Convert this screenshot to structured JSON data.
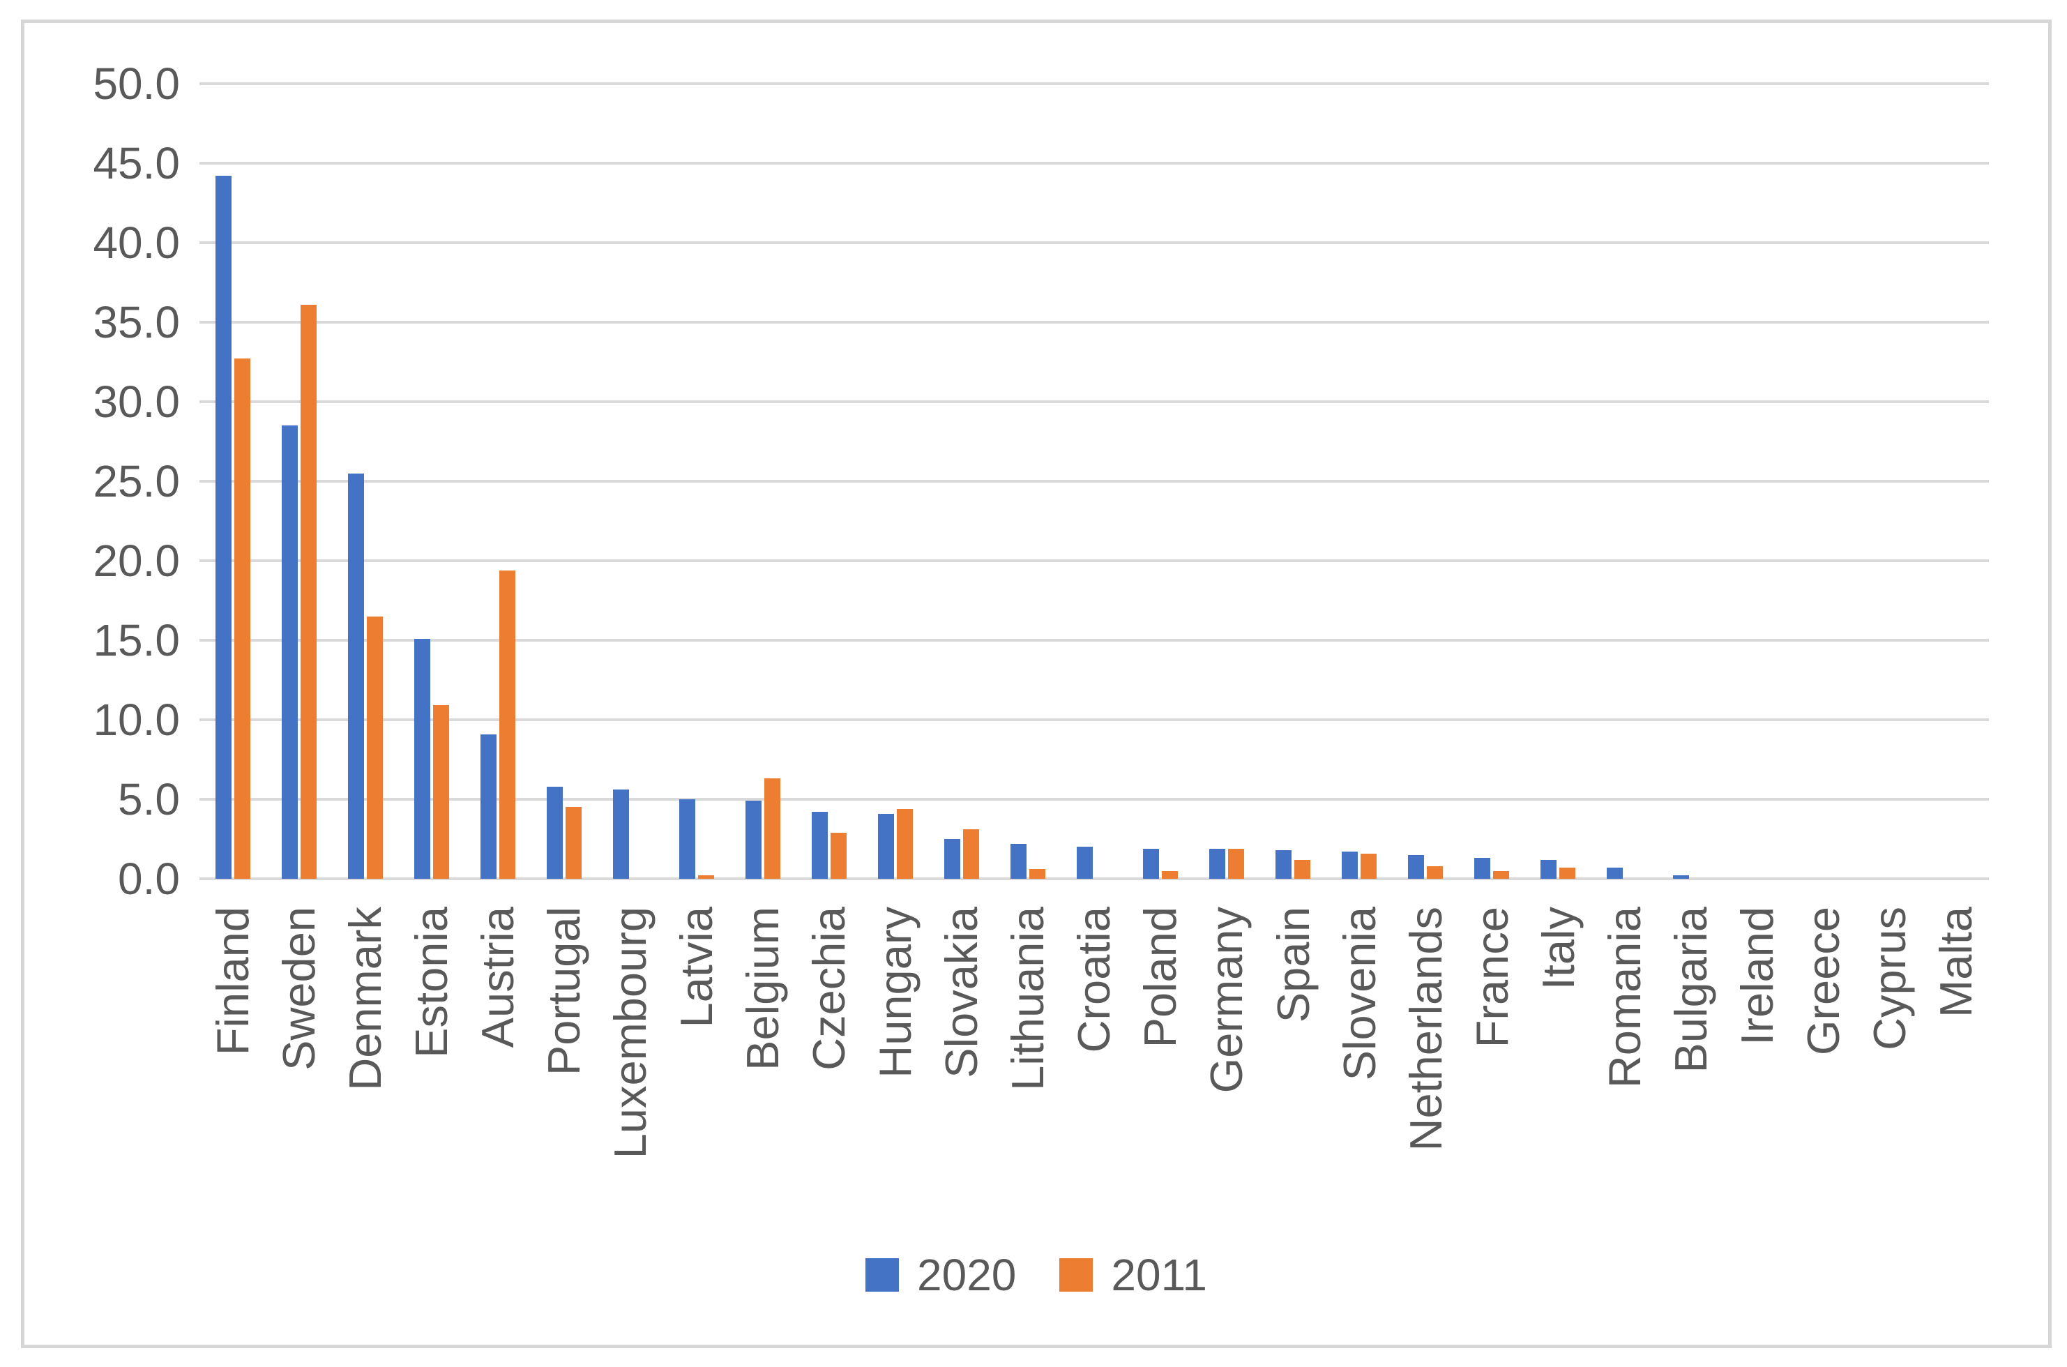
{
  "chart_data": {
    "type": "bar",
    "title": "",
    "xlabel": "",
    "ylabel": "",
    "categories": [
      "Finland",
      "Sweden",
      "Denmark",
      "Estonia",
      "Austria",
      "Portugal",
      "Luxembourg",
      "Latvia",
      "Belgium",
      "Czechia",
      "Hungary",
      "Slovakia",
      "Lithuania",
      "Croatia",
      "Poland",
      "Germany",
      "Spain",
      "Slovenia",
      "Netherlands",
      "France",
      "Italy",
      "Romania",
      "Bulgaria",
      "Ireland",
      "Greece",
      "Cyprus",
      "Malta"
    ],
    "series": [
      {
        "name": "2020",
        "color": "#4472C4",
        "values": [
          44.2,
          28.5,
          25.5,
          15.1,
          9.1,
          5.8,
          5.6,
          5.0,
          4.9,
          4.2,
          4.1,
          2.5,
          2.2,
          2.0,
          1.9,
          1.9,
          1.8,
          1.7,
          1.5,
          1.3,
          1.2,
          0.7,
          0.2,
          0.0,
          0.0,
          0.0,
          0.0
        ]
      },
      {
        "name": "2011",
        "color": "#ED7D31",
        "values": [
          32.7,
          36.1,
          16.5,
          10.9,
          19.4,
          4.5,
          0.0,
          0.2,
          6.3,
          2.9,
          4.4,
          3.1,
          0.6,
          0.0,
          0.5,
          1.9,
          1.2,
          1.6,
          0.8,
          0.5,
          0.7,
          0.0,
          0.0,
          0.0,
          0.0,
          0.0,
          0.0
        ]
      }
    ],
    "ylim": [
      0,
      50
    ],
    "ytick_step": 5,
    "ytick_labels": [
      "0.0",
      "5.0",
      "10.0",
      "15.0",
      "20.0",
      "25.0",
      "30.0",
      "35.0",
      "40.0",
      "45.0",
      "50.0"
    ],
    "grid": true,
    "legend_position": "bottom-center",
    "legend_entries": [
      "2020",
      "2011"
    ]
  },
  "colors": {
    "series_2020": "#4472C4",
    "series_2011": "#ED7D31",
    "gridline": "#D9D9D9",
    "axis_text": "#595959",
    "chart_border": "#D6D6D6",
    "background": "#FFFFFF"
  }
}
